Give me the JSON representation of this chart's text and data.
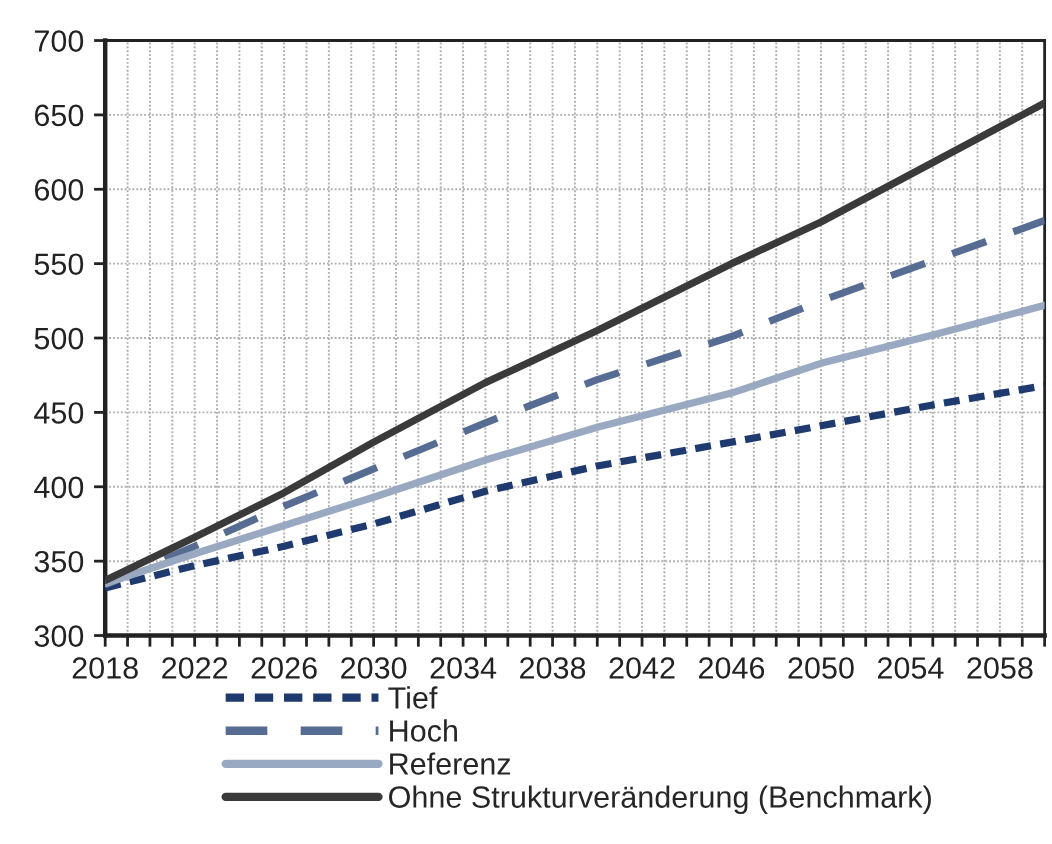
{
  "chart_data": {
    "type": "line",
    "x": [
      2018,
      2022,
      2026,
      2030,
      2035,
      2040,
      2046,
      2050,
      2055,
      2060
    ],
    "series": [
      {
        "name": "Tief",
        "color": "#1f3a6e",
        "line_style": "dotted",
        "values": [
          332,
          347,
          360,
          375,
          397,
          414,
          430,
          441,
          455,
          468
        ]
      },
      {
        "name": "Hoch",
        "color": "#566c93",
        "line_style": "dashed",
        "values": [
          334,
          360,
          387,
          412,
          443,
          472,
          501,
          525,
          552,
          579
        ]
      },
      {
        "name": "Referenz",
        "color": "#9aa9c2",
        "line_style": "solid",
        "values": [
          335,
          355,
          374,
          393,
          418,
          440,
          463,
          483,
          502,
          522
        ]
      },
      {
        "name": "Ohne Strukturveränderung (Benchmark)",
        "color": "#3a3a3a",
        "line_style": "solid",
        "x": [
          2018,
          2022,
          2026,
          2030,
          2035,
          2040,
          2046,
          2050,
          2055,
          2060
        ],
        "values": [
          337,
          366,
          396,
          430,
          470,
          505,
          550,
          578,
          618,
          658
        ]
      }
    ],
    "xlim": [
      2018,
      2060
    ],
    "xticks": [
      2018,
      {
        "value": 2019,
        "label": null
      },
      {
        "value": 2020,
        "label": null
      },
      {
        "value": 2021,
        "label": null
      },
      2022,
      {
        "value": 2023,
        "label": null
      },
      {
        "value": 2024,
        "label": null
      },
      {
        "value": 2025,
        "label": null
      },
      2026,
      {
        "value": 2027,
        "label": null
      },
      {
        "value": 2028,
        "label": null
      },
      {
        "value": 2029,
        "label": null
      },
      2030,
      {
        "value": 2031,
        "label": null
      },
      {
        "value": 2032,
        "label": null
      },
      {
        "value": 2033,
        "label": null
      },
      2034,
      {
        "value": 2035,
        "label": null
      },
      {
        "value": 2036,
        "label": null
      },
      {
        "value": 2037,
        "label": null
      },
      2038,
      {
        "value": 2039,
        "label": null
      },
      {
        "value": 2040,
        "label": null
      },
      {
        "value": 2041,
        "label": null
      },
      2042,
      {
        "value": 2043,
        "label": null
      },
      {
        "value": 2044,
        "label": null
      },
      {
        "value": 2045,
        "label": null
      },
      2046,
      {
        "value": 2047,
        "label": null
      },
      {
        "value": 2048,
        "label": null
      },
      {
        "value": 2049,
        "label": null
      },
      2050,
      {
        "value": 2051,
        "label": null
      },
      {
        "value": 2052,
        "label": null
      },
      {
        "value": 2053,
        "label": null
      },
      2054,
      {
        "value": 2055,
        "label": null
      },
      {
        "value": 2056,
        "label": null
      },
      {
        "value": 2057,
        "label": null
      },
      2058,
      {
        "value": 2059,
        "label": null
      },
      {
        "value": 2060,
        "label": null
      }
    ],
    "ylim": [
      300,
      700
    ],
    "yticks": [
      300,
      350,
      400,
      450,
      500,
      550,
      600,
      650,
      700
    ],
    "grid": true,
    "legend": "bottom",
    "marker": "none"
  }
}
